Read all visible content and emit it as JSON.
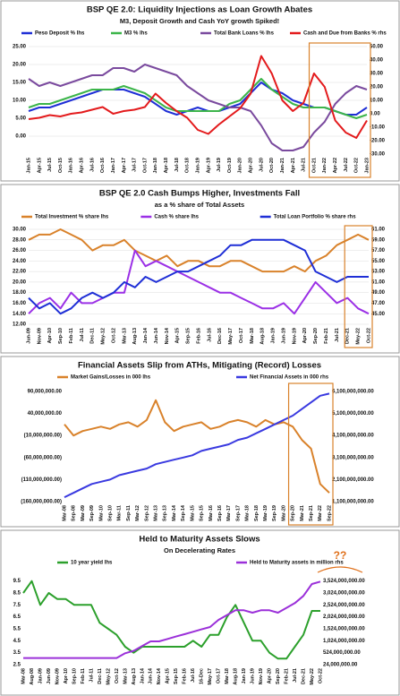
{
  "chart_data": [
    {
      "type": "line",
      "title": "BSP QE 2.0: Liquidity Injections as Loan Growth Abates",
      "subtitle": "M3, Deposit Growth and Cash YoY growth Spiked!",
      "categories": [
        "Jan-15",
        "Apr-15",
        "Jul-15",
        "Oct-15",
        "Jan-16",
        "Apr-16",
        "Jul-16",
        "Oct-16",
        "Jan-17",
        "Apr-17",
        "Jul-17",
        "Oct-17",
        "Jan-18",
        "Apr-18",
        "Jul-18",
        "Oct-18",
        "Jan-19",
        "Apr-19",
        "Jul-19",
        "Oct-19",
        "Jan-20",
        "Apr-20",
        "Jul-20",
        "Oct-20",
        "Jan-21",
        "Apr-21",
        "Jul-21",
        "Oct-21",
        "Jan-22",
        "Apr-22",
        "Jul-22",
        "Oct-22",
        "Jan-23"
      ],
      "series": [
        {
          "name": "Peso Deposit % lhs",
          "color": "#1f2fd6",
          "values": [
            7,
            8,
            8,
            9,
            10,
            11,
            12,
            13,
            13,
            13,
            12,
            11,
            9,
            7,
            6,
            7,
            8,
            7,
            7,
            8,
            9,
            12,
            15,
            13,
            12,
            10,
            9,
            8,
            8,
            7,
            6,
            6,
            8
          ]
        },
        {
          "name": "M3 % lhs",
          "color": "#3cb54a",
          "values": [
            8,
            9,
            9,
            10,
            11,
            12,
            13,
            13,
            13,
            14,
            13,
            12,
            10,
            8,
            7,
            7,
            7,
            7,
            7,
            9,
            10,
            13,
            16,
            13,
            11,
            9,
            8,
            8,
            8,
            7,
            6,
            5,
            6
          ]
        },
        {
          "name": "Total Bank Loans % lhs",
          "color": "#7a4a9e",
          "values": [
            16,
            14,
            15,
            14,
            15,
            16,
            17,
            17,
            19,
            19,
            18,
            20,
            19,
            18,
            17,
            14,
            12,
            10,
            9,
            8,
            8,
            7,
            3,
            -2,
            -4,
            -4,
            -3,
            1,
            4,
            9,
            12,
            14,
            13
          ]
        },
        {
          "name": "Cash and Due from Banks % rhs",
          "color": "#e31a1c",
          "axis": "y2",
          "values": [
            -4,
            -3,
            -1,
            -2,
            0,
            1,
            3,
            5,
            0,
            2,
            3,
            5,
            15,
            8,
            2,
            -3,
            -12,
            -15,
            -8,
            -2,
            4,
            15,
            43,
            30,
            10,
            2,
            8,
            30,
            20,
            -5,
            -14,
            -18,
            -5
          ]
        }
      ],
      "ylim": [
        -5,
        25
      ],
      "yticks": [
        {
          "value": 0,
          "label": "0.00"
        },
        {
          "value": 5,
          "label": "5.00"
        },
        {
          "value": 10,
          "label": "10.00"
        },
        {
          "value": 15,
          "label": "15.00"
        },
        {
          "value": 20,
          "label": "20.00"
        },
        {
          "value": 25,
          "label": "25.00"
        }
      ],
      "y2lim": [
        -30,
        50
      ],
      "y2ticks": [
        {
          "value": -30,
          "label": "-30.00"
        },
        {
          "value": -20,
          "label": "-20.00"
        },
        {
          "value": -10,
          "label": "-10.00"
        },
        {
          "value": 0,
          "label": "0.00"
        },
        {
          "value": 10,
          "label": "10.00"
        },
        {
          "value": 20,
          "label": "20.00"
        },
        {
          "value": 30,
          "label": "30.00"
        },
        {
          "value": 40,
          "label": "40.00"
        },
        {
          "value": 50,
          "label": "50.00"
        }
      ],
      "grid": true
    },
    {
      "type": "line",
      "title": "BSP QE 2.0 Cash Bumps Higher, Investments Fall",
      "subtitle": "as a % share of Total Assets",
      "categories": [
        "Jun-09",
        "Nov-09",
        "Apr-10",
        "Sep-10",
        "Feb-11",
        "Jul-11",
        "Dec-11",
        "May-12",
        "Oct-12",
        "Mar-13",
        "Aug-13",
        "Jan-14",
        "Jun-14",
        "Nov-14",
        "Apr-15",
        "Sep-15",
        "Feb-16",
        "Jul-16",
        "Dec-16",
        "May-17",
        "Oct-17",
        "Mar-18",
        "Aug-18",
        "Jan-19",
        "Jun-19",
        "Nov-19",
        "Apr-20",
        "Sep-20",
        "Feb-21",
        "Jul-21",
        "Dec-21",
        "May-22",
        "Oct-22"
      ],
      "series": [
        {
          "name": "Total Investment % share lhs",
          "color": "#d9822b",
          "values": [
            28,
            29,
            29,
            30,
            29,
            28,
            26,
            27,
            27,
            28,
            26,
            25,
            24,
            25,
            23,
            24,
            24,
            23,
            23,
            24,
            24,
            23,
            22,
            22,
            22,
            23,
            22,
            24,
            25,
            27,
            28,
            29,
            28
          ]
        },
        {
          "name": "Cash % share lhs",
          "color": "#9b30e6",
          "values": [
            14,
            16,
            17,
            15,
            18,
            16,
            16,
            17,
            18,
            18,
            26,
            23,
            24,
            23,
            22,
            21,
            20,
            19,
            18,
            18,
            17,
            16,
            15,
            15,
            16,
            14,
            17,
            20,
            18,
            16,
            17,
            15,
            14
          ]
        },
        {
          "name": "Total Loan Portfolio % share rhs",
          "color": "#1f2fd6",
          "axis": "y2",
          "values": [
            48,
            46,
            47,
            45,
            46,
            48,
            49,
            48,
            49,
            51,
            50,
            52,
            51,
            52,
            53,
            53,
            54,
            55,
            56,
            58,
            58,
            59,
            59,
            59,
            59,
            58,
            57,
            53,
            52,
            51,
            52,
            52,
            52
          ]
        }
      ],
      "ylim": [
        12,
        30
      ],
      "yticks": [
        {
          "value": 12,
          "label": "12.00"
        },
        {
          "value": 14,
          "label": "14.00"
        },
        {
          "value": 16,
          "label": "16.00"
        },
        {
          "value": 18,
          "label": "18.00"
        },
        {
          "value": 20,
          "label": "20.00"
        },
        {
          "value": 22,
          "label": "22.00"
        },
        {
          "value": 24,
          "label": "24.00"
        },
        {
          "value": 26,
          "label": "26.00"
        },
        {
          "value": 28,
          "label": "28.00"
        },
        {
          "value": 30,
          "label": "30.00"
        }
      ],
      "y2lim": [
        43,
        61
      ],
      "y2ticks": [
        {
          "value": 45,
          "label": "45.00"
        },
        {
          "value": 47,
          "label": "47.00"
        },
        {
          "value": 49,
          "label": "49.00"
        },
        {
          "value": 51,
          "label": "51.00"
        },
        {
          "value": 53,
          "label": "53.00"
        },
        {
          "value": 55,
          "label": "55.00"
        },
        {
          "value": 57,
          "label": "57.00"
        },
        {
          "value": 59,
          "label": "59.00"
        },
        {
          "value": 61,
          "label": "61.00"
        }
      ],
      "grid": true
    },
    {
      "type": "line",
      "title": "Financial Assets Slip from ATHs, Mitigating (Record) Losses",
      "categories": [
        "Mar-08",
        "Sep-08",
        "Mar-09",
        "Sep-09",
        "Mar-10",
        "Sep-10",
        "Mar-11",
        "Sep-11",
        "Mar-12",
        "Sep-12",
        "Mar-13",
        "Sep-13",
        "Mar-14",
        "Sep-14",
        "Mar-15",
        "Sep-15",
        "Mar-16",
        "Sep-16",
        "Mar-17",
        "Sep-17",
        "Mar-18",
        "Sep-18",
        "Mar-19",
        "Sep-19",
        "Mar-20",
        "Sep-20",
        "Mar-21",
        "Sep-21",
        "Mar-22",
        "Sep-22"
      ],
      "series": [
        {
          "name": "Market Gains/Losses in 000 lhs",
          "color": "#d9822b",
          "values": [
            15000000,
            -10000000,
            0,
            5000000,
            10000000,
            5000000,
            15000000,
            20000000,
            10000000,
            25000000,
            70000000,
            20000000,
            0,
            10000000,
            15000000,
            20000000,
            5000000,
            10000000,
            20000000,
            25000000,
            20000000,
            10000000,
            25000000,
            15000000,
            20000000,
            10000000,
            -20000000,
            -40000000,
            -120000000,
            -140000000
          ]
        },
        {
          "name": "Net Financial Assets in 000 rhs",
          "color": "#3a3ae0",
          "axis": "y2",
          "values": [
            1300000000,
            1500000000,
            1700000000,
            1900000000,
            2000000000,
            2100000000,
            2300000000,
            2400000000,
            2500000000,
            2600000000,
            2800000000,
            2900000000,
            3000000000,
            3100000000,
            3200000000,
            3400000000,
            3500000000,
            3600000000,
            3700000000,
            3900000000,
            4000000000,
            4200000000,
            4400000000,
            4600000000,
            4800000000,
            5000000000,
            5300000000,
            5600000000,
            5900000000,
            6000000000
          ]
        }
      ],
      "ylim": [
        -160000000,
        100000000
      ],
      "yticks": [
        {
          "value": -160000000,
          "label": "(160,000,000.00)"
        },
        {
          "value": -110000000,
          "label": "(110,000,000.00)"
        },
        {
          "value": -60000000,
          "label": "(60,000,000.00)"
        },
        {
          "value": -10000000,
          "label": "(10,000,000.00)"
        },
        {
          "value": 40000000,
          "label": "40,000,000.00"
        },
        {
          "value": 90000000,
          "label": "90,000,000.00"
        }
      ],
      "y2lim": [
        1100000000,
        6300000000
      ],
      "y2ticks": [
        {
          "value": 1100000000,
          "label": "1,100,000,000.00"
        },
        {
          "value": 2100000000,
          "label": "2,100,000,000.00"
        },
        {
          "value": 3100000000,
          "label": "3,100,000,000.00"
        },
        {
          "value": 4100000000,
          "label": "4,100,000,000.00"
        },
        {
          "value": 5100000000,
          "label": "5,100,000,000.00"
        },
        {
          "value": 6100000000,
          "label": "6,100,000,000.00"
        }
      ],
      "grid": false
    },
    {
      "type": "line",
      "title": "Held to Maturity Assets Slows",
      "subtitle": "On Decelerating Rates",
      "annotation": "??",
      "categories": [
        "Mar-08",
        "Aug-08",
        "Jan-09",
        "Jun-09",
        "Nov-09",
        "Apr-10",
        "Sep-10",
        "Feb-11",
        "Jul-11",
        "Dec-11",
        "May-12",
        "Oct-12",
        "Mar-13",
        "Aug-13",
        "Jan-14",
        "Jun-14",
        "Nov-14",
        "Apr-15",
        "Sep-15",
        "Feb-16",
        "Jul-16",
        "16-Dec",
        "May-17",
        "Oct-17",
        "Mar-18",
        "Aug-18",
        "Jan-19",
        "Jun-19",
        "Nov-19",
        "Apr-20",
        "Sep-20",
        "Feb-21",
        "Jul-21",
        "Dec-21",
        "May-22",
        "Oct-22"
      ],
      "series": [
        {
          "name": "10 year yield lhs",
          "color": "#2ca02c",
          "values": [
            8.5,
            9.5,
            7.5,
            8.5,
            8,
            8,
            7.5,
            7.5,
            7.5,
            6,
            5.5,
            5,
            4,
            3.5,
            4,
            4,
            4,
            4,
            4,
            4,
            4.5,
            4,
            5,
            5,
            6.5,
            7.5,
            6,
            4.5,
            4.5,
            3.5,
            3,
            3,
            4,
            5,
            7,
            7
          ]
        },
        {
          "name": "Held to Maturity assets in million rhs",
          "color": "#9b30d9",
          "axis": "y2",
          "values": [
            300000000,
            300000000,
            300000000,
            300000000,
            300000000,
            300000000,
            300000000,
            300000000,
            300000000,
            300000000,
            300000000,
            300000000,
            500000000,
            600000000,
            800000000,
            1000000000,
            1000000000,
            1100000000,
            1200000000,
            1300000000,
            1400000000,
            1500000000,
            1600000000,
            1900000000,
            2100000000,
            2300000000,
            2300000000,
            2200000000,
            2300000000,
            2300000000,
            2200000000,
            2400000000,
            2600000000,
            2900000000,
            3400000000,
            3500000000
          ]
        }
      ],
      "ylim": [
        2.5,
        10
      ],
      "yticks": [
        2.5,
        3.5,
        4.5,
        5.5,
        6.5,
        7.5,
        8.5,
        9.5
      ],
      "y2lim": [
        24000000,
        3774000000
      ],
      "y2ticks": [
        {
          "value": 24000000,
          "label": "24,000,000.00"
        },
        {
          "value": 524000000,
          "label": "524,000,000.00"
        },
        {
          "value": 1024000000,
          "label": "1,024,000,000.00"
        },
        {
          "value": 1524000000,
          "label": "1,524,000,000.00"
        },
        {
          "value": 2024000000,
          "label": "2,024,000,000.00"
        },
        {
          "value": 2524000000,
          "label": "2,524,000,000.00"
        },
        {
          "value": 3024000000,
          "label": "3,024,000,000.00"
        },
        {
          "value": 3524000000,
          "label": "3,524,000,000.00"
        }
      ],
      "grid": false
    }
  ]
}
